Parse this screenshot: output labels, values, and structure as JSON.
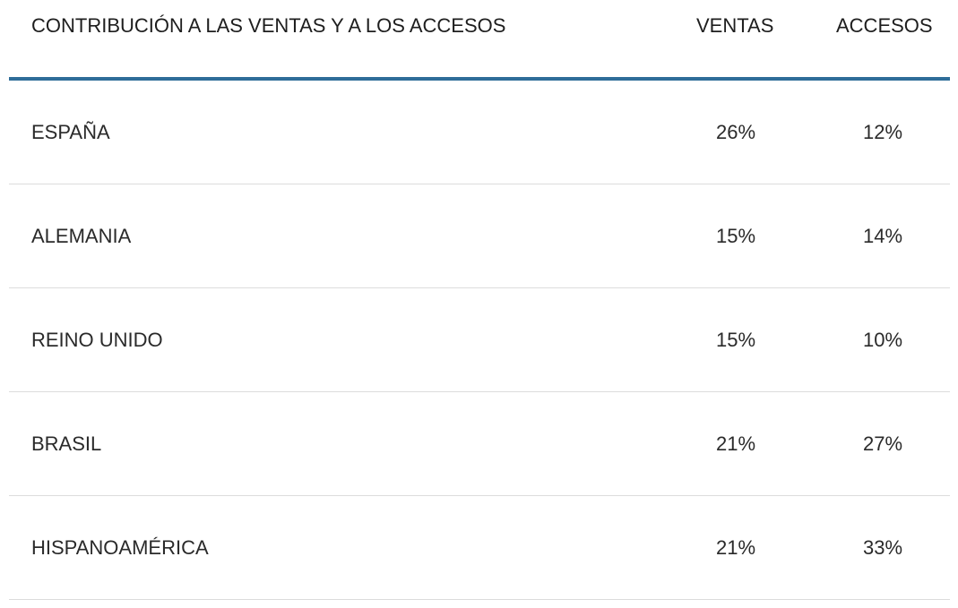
{
  "table": {
    "headers": {
      "name": "CONTRIBUCIÓN A LAS VENTAS Y A LOS ACCESOS",
      "ventas": "VENTAS",
      "accesos": "ACCESOS"
    },
    "rows": [
      {
        "name": "ESPAÑA",
        "ventas": "26%",
        "accesos": "12%"
      },
      {
        "name": "ALEMANIA",
        "ventas": "15%",
        "accesos": "14%"
      },
      {
        "name": "REINO UNIDO",
        "ventas": "15%",
        "accesos": "10%"
      },
      {
        "name": "BRASIL",
        "ventas": "21%",
        "accesos": "27%"
      },
      {
        "name": "HISPANOAMÉRICA",
        "ventas": "21%",
        "accesos": "33%"
      }
    ]
  },
  "colors": {
    "header_rule": "#2e6d99",
    "row_divider": "#dcdcdc"
  }
}
